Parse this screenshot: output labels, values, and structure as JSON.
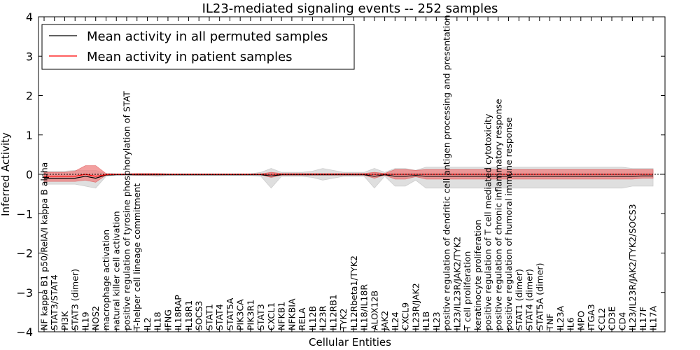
{
  "chart_data": {
    "type": "line",
    "title": "IL23-mediated signaling events -- 252 samples",
    "xlabel": "Cellular Entities",
    "ylabel": "Inferred Activity",
    "ylim": [
      -4,
      4
    ],
    "yticks": [
      -4,
      -3,
      -2,
      -1,
      0,
      1,
      2,
      3,
      4
    ],
    "ytick_labels": [
      "−4",
      "−3",
      "−2",
      "−1",
      "0",
      "1",
      "2",
      "3",
      "4"
    ],
    "legend_position": "top-left",
    "categories": [
      "NF kappa B1 p50/RelA/I kappa B alpha",
      "STAT3/STAT4",
      "PI3K",
      "STAT3 (dimer)",
      "IL19",
      "NOS2",
      "macrophage activation",
      "natural killer cell activation",
      "positive regulation of tyrosine phosphorylation of STAT",
      "T-helper cell lineage commitment",
      "IL2",
      "IL18",
      "IFNG",
      "IL18RAP",
      "IL18R1",
      "SOCS3",
      "STAT1",
      "STAT4",
      "STAT5A",
      "PIK3CA",
      "PIK3R1",
      "STAT3",
      "CXCL1",
      "NFKB1",
      "NFKBIA",
      "RELA",
      "IL12B",
      "IL23R",
      "IL12RB1",
      "TYK2",
      "IL12Rbeta1/TYK2",
      "IL18/IL18R",
      "ALOX12B",
      "JAK2",
      "IL24",
      "CXCL9",
      "IL23R/JAK2",
      "IL1B",
      "IL23",
      "positive regulation of dendritic cell antigen processing and presentation",
      "IL23/IL23R/JAK2/TYK2",
      "T cell proliferation",
      "keratinocyte proliferation",
      "positive regulation of T cell mediated cytotoxicity",
      "positive regulation of chronic inflammatory response",
      "positive regulation of humoral immune response",
      "STAT1 (dimer)",
      "STAT4 (dimer)",
      "STAT5A (dimer)",
      "TNF",
      "IL23A",
      "IL6",
      "MPO",
      "ITGA3",
      "CCL2",
      "CD3E",
      "CD4",
      "IL23/IL23R/JAK2/TYK2/SOCS3",
      "IL17F",
      "IL17A"
    ],
    "series": [
      {
        "name": "Mean activity in all permuted samples",
        "color": "#000000",
        "values": [
          -0.1,
          -0.1,
          -0.1,
          -0.1,
          -0.05,
          -0.1,
          -0.02,
          -0.01,
          -0.01,
          -0.01,
          -0.01,
          -0.01,
          -0.01,
          -0.01,
          -0.01,
          -0.01,
          -0.01,
          -0.01,
          -0.01,
          -0.01,
          -0.01,
          -0.01,
          -0.04,
          -0.01,
          -0.01,
          -0.01,
          -0.01,
          -0.01,
          -0.01,
          -0.01,
          -0.01,
          -0.01,
          -0.05,
          -0.01,
          -0.05,
          -0.05,
          -0.03,
          -0.05,
          -0.05,
          -0.05,
          -0.05,
          -0.05,
          -0.05,
          -0.05,
          -0.05,
          -0.05,
          -0.05,
          -0.05,
          -0.05,
          -0.05,
          -0.05,
          -0.05,
          -0.05,
          -0.05,
          -0.05,
          -0.05,
          -0.05,
          -0.05,
          -0.04,
          -0.04
        ]
      },
      {
        "name": "Mean activity in patient samples",
        "color": "#ff0000",
        "band_color": "#f08080",
        "values": [
          -0.05,
          -0.05,
          -0.05,
          -0.05,
          0.0,
          -0.05,
          -0.01,
          0.0,
          0.0,
          0.0,
          0.0,
          0.0,
          0.0,
          0.0,
          0.0,
          0.0,
          0.0,
          0.0,
          0.0,
          0.0,
          0.0,
          0.0,
          0.0,
          0.0,
          0.0,
          0.0,
          0.0,
          0.0,
          0.0,
          0.0,
          0.0,
          0.0,
          0.0,
          0.0,
          0.0,
          0.0,
          0.0,
          0.0,
          0.0,
          0.0,
          0.0,
          0.0,
          0.0,
          0.0,
          0.0,
          0.0,
          0.0,
          0.0,
          0.0,
          0.0,
          0.0,
          0.0,
          0.0,
          0.0,
          0.0,
          0.0,
          0.0,
          0.0,
          0.0,
          0.0
        ],
        "band_upper": [
          0.05,
          0.05,
          0.05,
          0.08,
          0.22,
          0.22,
          0.02,
          0.01,
          0.01,
          0.02,
          0.02,
          0.02,
          0.01,
          0.01,
          0.01,
          0.01,
          0.01,
          0.01,
          0.01,
          0.01,
          0.01,
          0.01,
          0.05,
          0.02,
          0.02,
          0.02,
          0.02,
          0.02,
          0.02,
          0.02,
          0.02,
          0.02,
          0.05,
          0.02,
          0.12,
          0.12,
          0.1,
          0.12,
          0.12,
          0.12,
          0.12,
          0.12,
          0.12,
          0.12,
          0.12,
          0.12,
          0.12,
          0.12,
          0.12,
          0.12,
          0.12,
          0.12,
          0.12,
          0.12,
          0.12,
          0.12,
          0.12,
          0.12,
          0.12,
          0.12
        ],
        "band_lower": [
          -0.18,
          -0.18,
          -0.18,
          -0.18,
          -0.15,
          -0.2,
          -0.02,
          -0.01,
          -0.01,
          -0.02,
          -0.02,
          -0.02,
          -0.01,
          -0.01,
          -0.01,
          -0.01,
          -0.01,
          -0.01,
          -0.01,
          -0.01,
          -0.01,
          -0.01,
          -0.08,
          -0.02,
          -0.02,
          -0.02,
          -0.02,
          -0.02,
          -0.02,
          -0.02,
          -0.02,
          -0.02,
          -0.1,
          -0.02,
          -0.12,
          -0.12,
          -0.06,
          -0.12,
          -0.12,
          -0.12,
          -0.12,
          -0.12,
          -0.12,
          -0.12,
          -0.12,
          -0.12,
          -0.12,
          -0.12,
          -0.12,
          -0.12,
          -0.12,
          -0.12,
          -0.12,
          -0.12,
          -0.12,
          -0.12,
          -0.12,
          -0.12,
          -0.1,
          -0.1
        ]
      }
    ],
    "permuted_band_upper": [
      0.08,
      0.08,
      0.08,
      0.1,
      0.1,
      0.1,
      0.02,
      0.01,
      0.01,
      0.02,
      0.02,
      0.02,
      0.01,
      0.01,
      0.01,
      0.01,
      0.01,
      0.01,
      0.01,
      0.01,
      0.01,
      0.05,
      0.15,
      0.05,
      0.05,
      0.05,
      0.08,
      0.15,
      0.1,
      0.05,
      0.05,
      0.05,
      0.15,
      0.05,
      0.15,
      0.15,
      0.1,
      0.18,
      0.18,
      0.18,
      0.18,
      0.18,
      0.18,
      0.18,
      0.18,
      0.18,
      0.18,
      0.18,
      0.18,
      0.18,
      0.18,
      0.18,
      0.18,
      0.18,
      0.18,
      0.18,
      0.18,
      0.15,
      0.15,
      0.15
    ],
    "permuted_band_lower": [
      -0.25,
      -0.25,
      -0.25,
      -0.25,
      -0.3,
      -0.35,
      -0.05,
      -0.02,
      -0.02,
      -0.03,
      -0.03,
      -0.05,
      -0.03,
      -0.03,
      -0.03,
      -0.03,
      -0.03,
      -0.03,
      -0.03,
      -0.03,
      -0.03,
      -0.05,
      -0.35,
      -0.05,
      -0.05,
      -0.05,
      -0.08,
      -0.15,
      -0.1,
      -0.05,
      -0.05,
      -0.05,
      -0.35,
      -0.05,
      -0.3,
      -0.3,
      -0.15,
      -0.35,
      -0.35,
      -0.35,
      -0.35,
      -0.35,
      -0.35,
      -0.35,
      -0.35,
      -0.35,
      -0.35,
      -0.35,
      -0.35,
      -0.35,
      -0.35,
      -0.35,
      -0.35,
      -0.35,
      -0.35,
      -0.35,
      -0.35,
      -0.3,
      -0.3,
      -0.3
    ],
    "permuted_band_color": "#dcdcdc"
  }
}
